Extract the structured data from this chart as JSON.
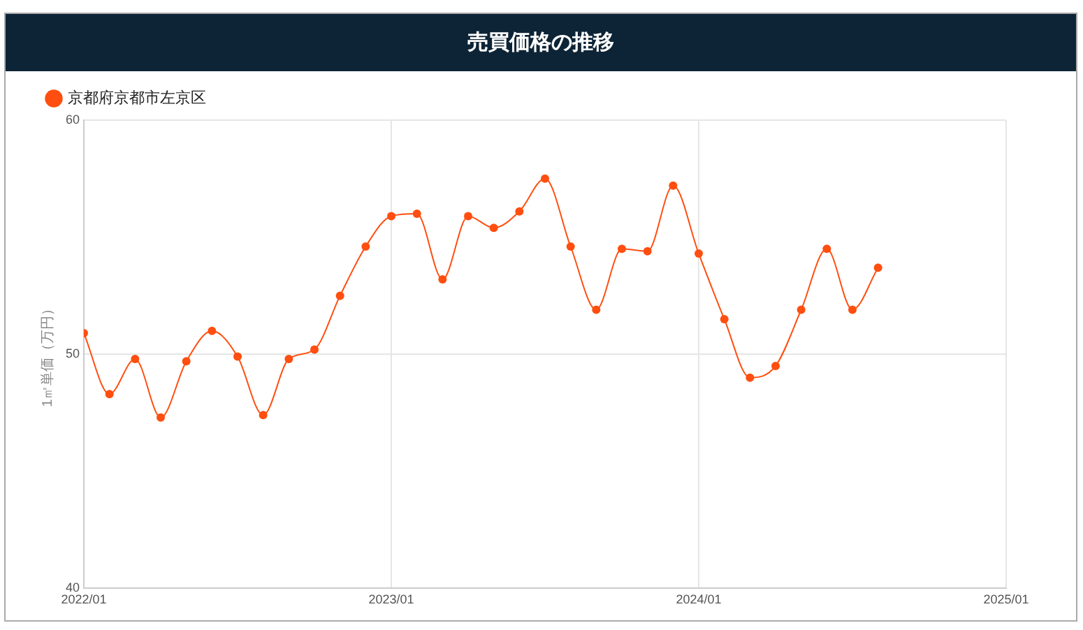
{
  "chart_data": {
    "type": "line",
    "title": "売買価格の推移",
    "ylabel": "1㎡単価（万円）",
    "x": [
      "2022-01",
      "2022-02",
      "2022-03",
      "2022-04",
      "2022-05",
      "2022-06",
      "2022-07",
      "2022-08",
      "2022-09",
      "2022-10",
      "2022-11",
      "2022-12",
      "2023-01",
      "2023-02",
      "2023-03",
      "2023-04",
      "2023-05",
      "2023-06",
      "2023-07",
      "2023-08",
      "2023-09",
      "2023-10",
      "2023-11",
      "2023-12",
      "2024-01",
      "2024-02",
      "2024-03",
      "2024-04",
      "2024-05",
      "2024-06",
      "2024-07",
      "2024-08"
    ],
    "series": [
      {
        "name": "京都府京都市左京区",
        "color": "#ff4e0f",
        "values": [
          50.9,
          48.3,
          49.8,
          47.3,
          49.7,
          51.0,
          49.9,
          47.4,
          49.8,
          50.2,
          52.5,
          54.6,
          55.9,
          56.0,
          53.2,
          55.9,
          55.4,
          56.1,
          57.5,
          54.6,
          51.9,
          54.5,
          54.4,
          57.2,
          54.3,
          51.5,
          49.0,
          49.5,
          51.9,
          54.5,
          51.9,
          53.7
        ]
      }
    ],
    "xlim": [
      "2022-01",
      "2025-01"
    ],
    "xticks": [
      {
        "value": "2022-01",
        "label": "2022/01"
      },
      {
        "value": "2023-01",
        "label": "2023/01"
      },
      {
        "value": "2024-01",
        "label": "2024/01"
      },
      {
        "value": "2025-01",
        "label": "2025/01"
      }
    ],
    "ylim": [
      40,
      60
    ],
    "yticks": [
      40,
      50,
      60
    ],
    "grid": true,
    "legend": "top left",
    "marker": "circle",
    "line_style": "solid"
  }
}
